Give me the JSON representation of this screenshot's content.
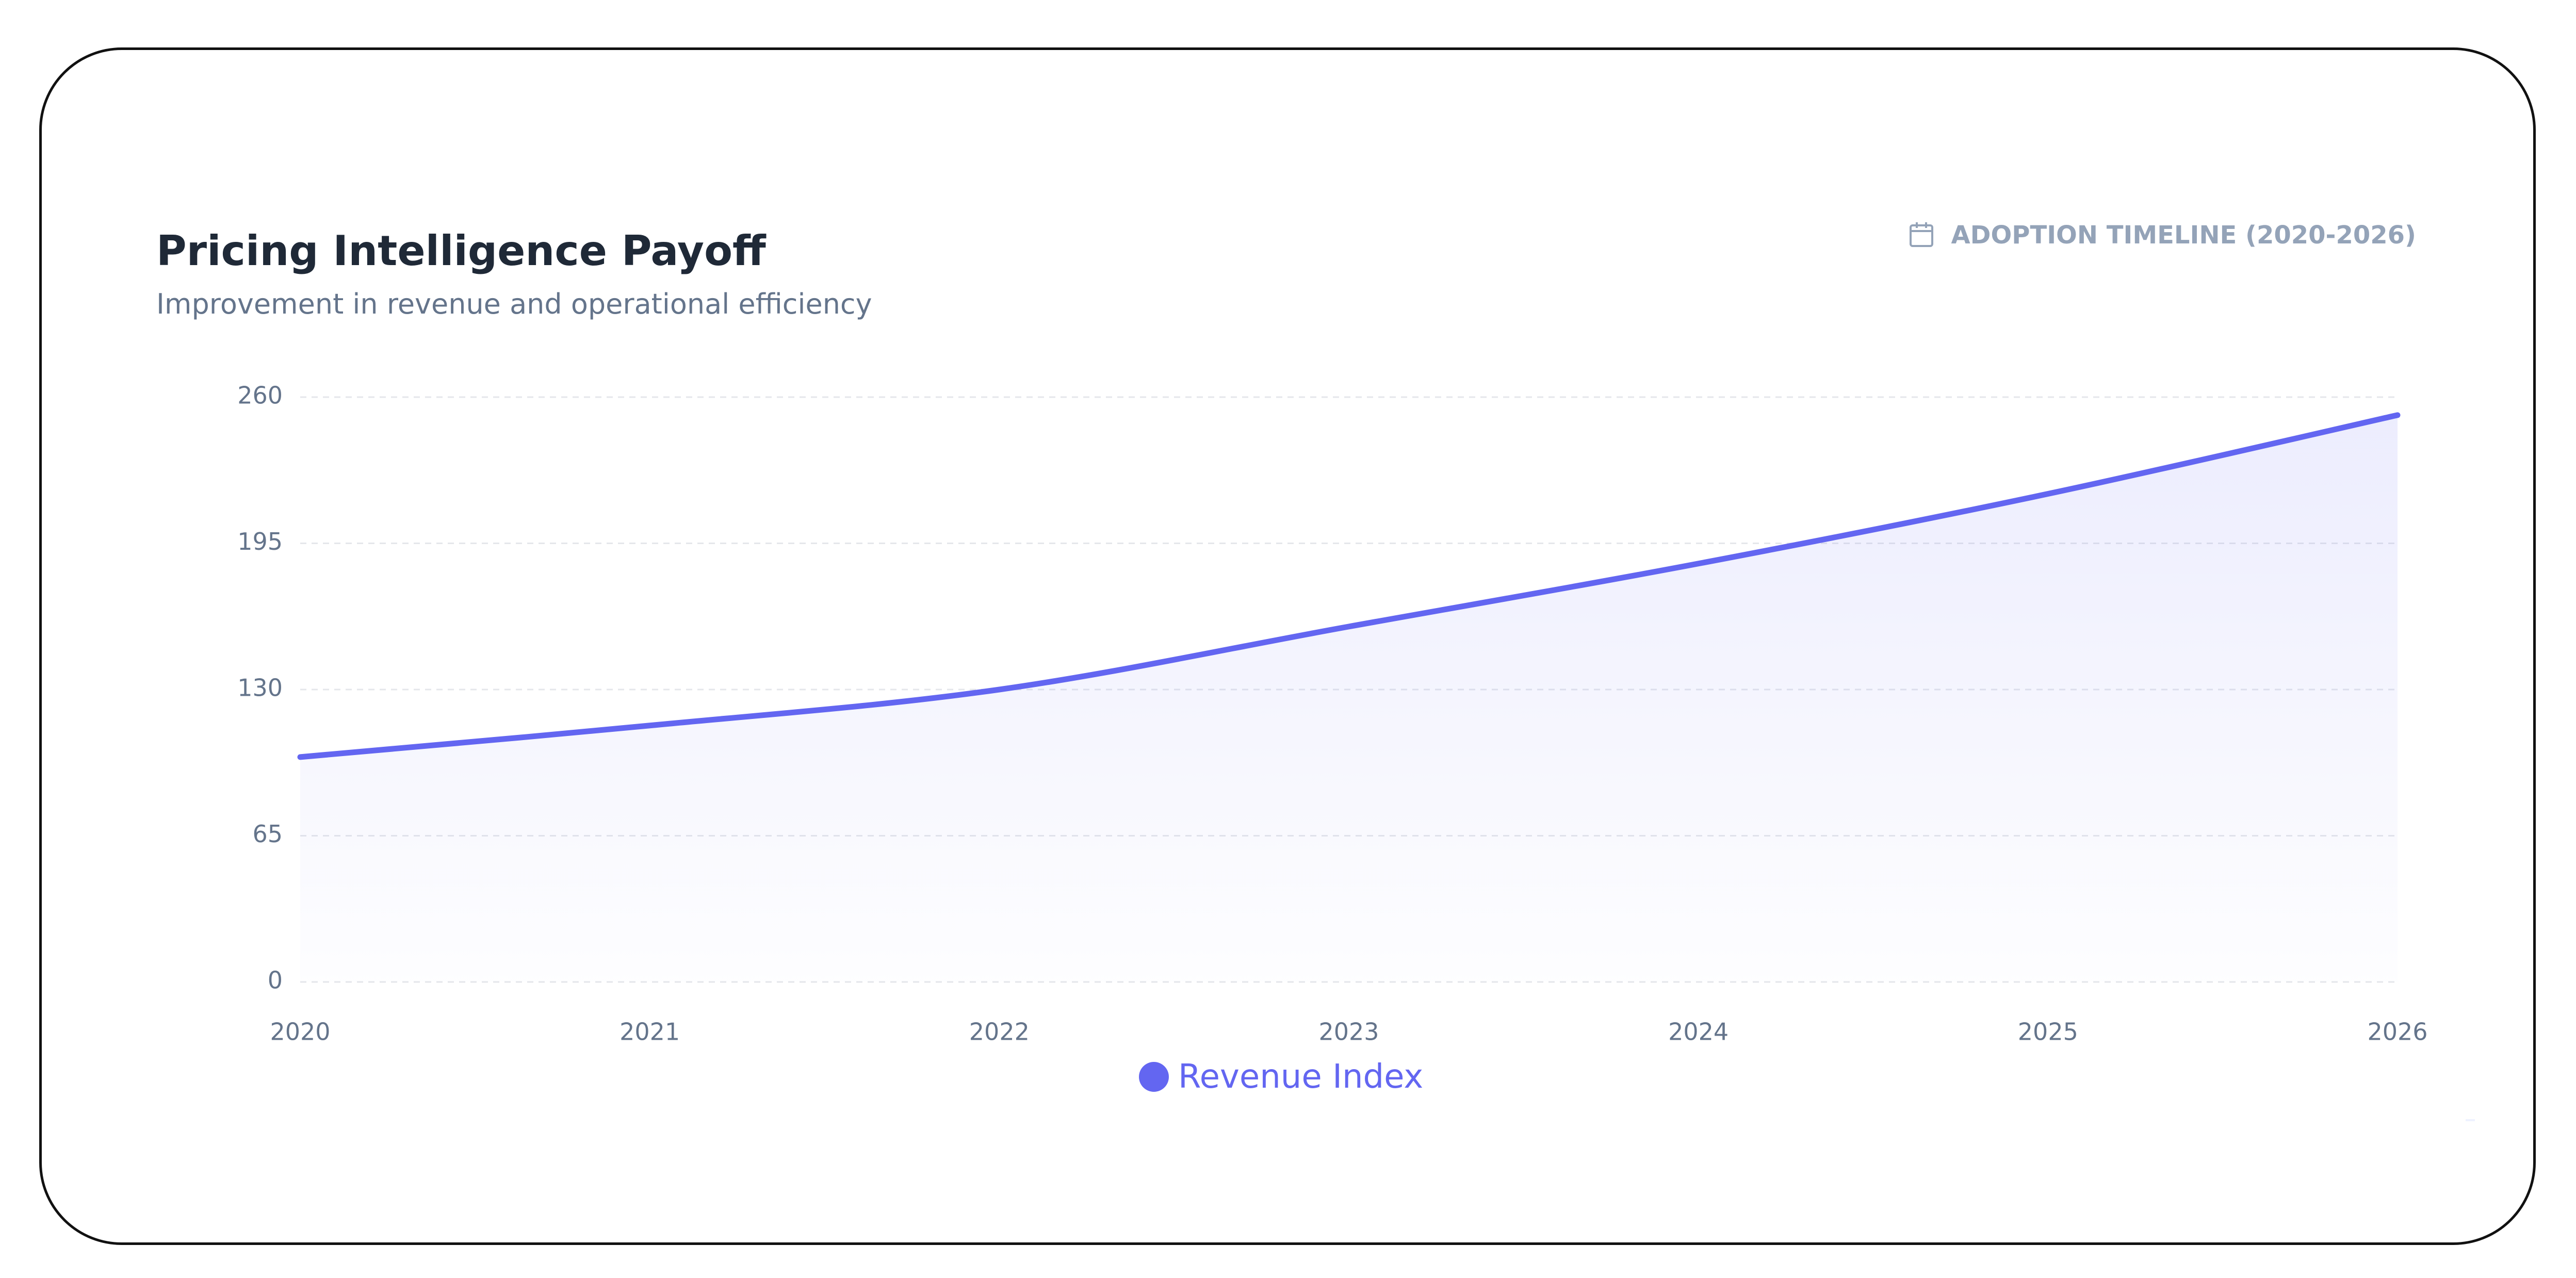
{
  "colors": {
    "line": "#6366f1",
    "fill": "#6366f1",
    "grid": "#e5e7eb",
    "tick_text": "#64748b",
    "title": "#1f2937",
    "muted": "#94a3b8"
  },
  "header": {
    "title": "Pricing Intelligence Payoff",
    "subtitle": "Improvement in revenue and operational efficiency",
    "timeline_label": "ADOPTION TIMELINE (2020-2026)",
    "timeline_icon": "calendar-icon"
  },
  "chart_data": {
    "type": "area",
    "title": "Pricing Intelligence Payoff",
    "subtitle": "Improvement in revenue and operational efficiency",
    "xlabel": "",
    "ylabel": "",
    "x": [
      "2020",
      "2021",
      "2022",
      "2023",
      "2024",
      "2025",
      "2026"
    ],
    "series": [
      {
        "name": "Revenue Index",
        "values": [
          100,
          114,
          130,
          158,
          186,
          217,
          252
        ]
      }
    ],
    "y_ticks": [
      0,
      65,
      130,
      195,
      260
    ],
    "ylim": [
      0,
      260
    ],
    "grid": true,
    "legend_position": "bottom-center"
  },
  "legend": {
    "label": "Revenue Index"
  }
}
